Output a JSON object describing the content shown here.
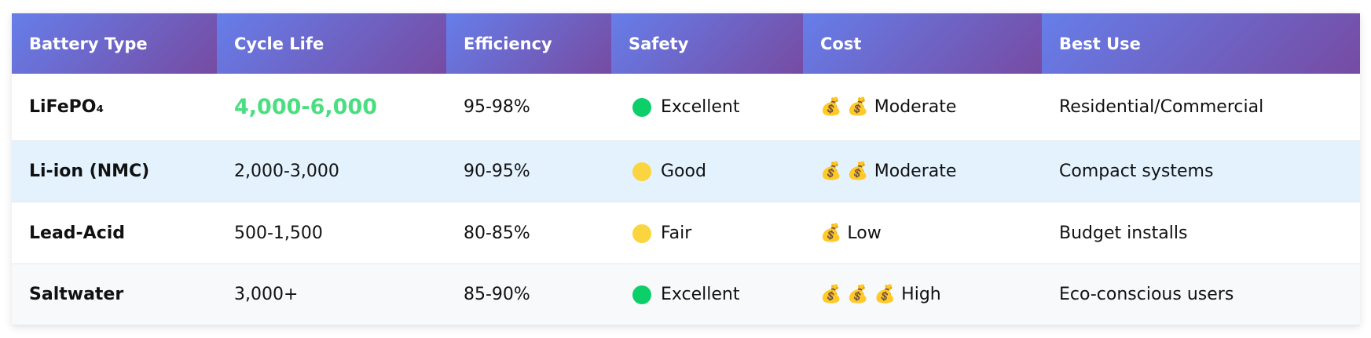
{
  "table": {
    "headers": [
      "Battery Type",
      "Cycle Life",
      "Efficiency",
      "Safety",
      "Cost",
      "Best Use"
    ],
    "rows": [
      [
        "LiFePO₄",
        "4,000-6,000",
        "95-98%",
        "Excellent",
        "💰 💰 Moderate",
        "Residential/Commercial"
      ],
      [
        "Li-ion (NMC)",
        "2,000-3,000",
        "90-95%",
        "Good",
        "💰 💰 Moderate",
        "Compact systems"
      ],
      [
        "Lead-Acid",
        "500-1,500",
        "80-85%",
        "Fair",
        "💰 Low",
        "Budget installs"
      ],
      [
        "Saltwater",
        "3,000+",
        "85-90%",
        "Excellent",
        "💰 💰 💰 High",
        "Eco-conscious users"
      ]
    ]
  }
}
